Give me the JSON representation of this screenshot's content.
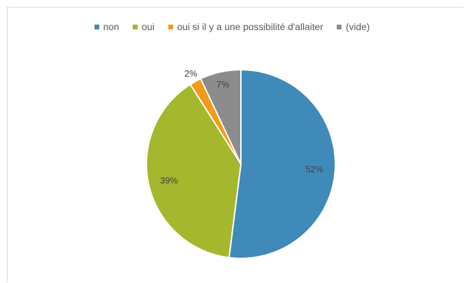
{
  "chart_data": {
    "type": "pie",
    "categories": [
      "non",
      "oui",
      "oui si il y a une possibilité d'allaiter",
      "(vide)"
    ],
    "values": [
      52,
      39,
      2,
      7
    ],
    "labels": [
      "52%",
      "39%",
      "2%",
      "7%"
    ],
    "colors": [
      "#3f8ab8",
      "#a4b72d",
      "#f39a1b",
      "#8c8c8c"
    ],
    "legend_position": "top",
    "start": "top",
    "direction": "clockwise"
  }
}
